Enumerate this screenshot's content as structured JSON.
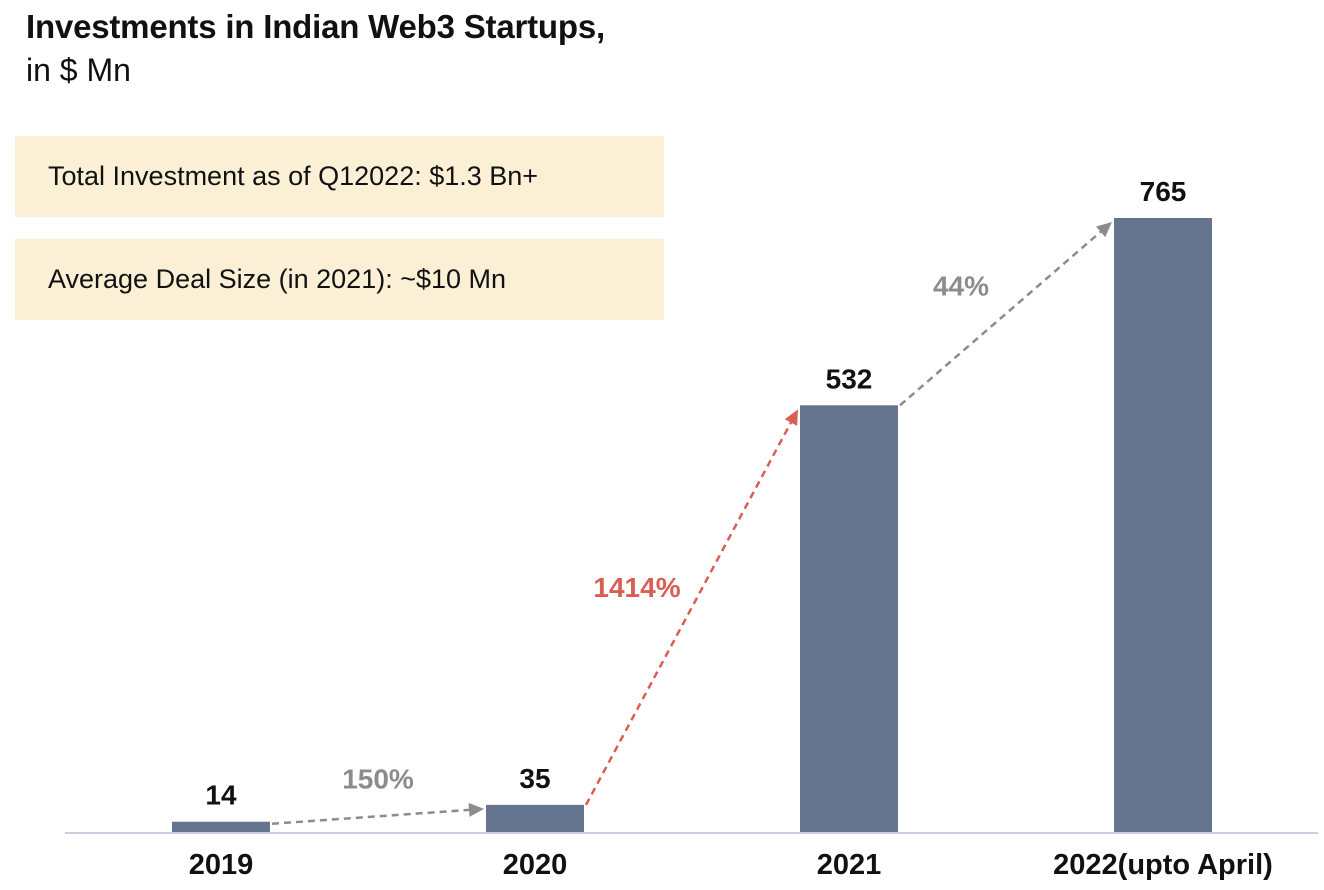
{
  "chart_data": {
    "type": "bar",
    "title": "Investments in Indian Web3 Startups,",
    "subtitle": "in $ Mn",
    "categories": [
      "2019",
      "2020",
      "2021",
      "2022(upto April)"
    ],
    "values": [
      14,
      35,
      532,
      765
    ],
    "value_labels": [
      "14",
      "35",
      "532",
      "765"
    ],
    "ylim": [
      0,
      765
    ],
    "xlabel": "",
    "ylabel": "",
    "grid": false,
    "bar_color": "#65758f",
    "baseline_color": "#c9d1e0",
    "growth_annotations": [
      {
        "from": "2019",
        "to": "2020",
        "label": "150%",
        "color": "#8c8c8c"
      },
      {
        "from": "2020",
        "to": "2021",
        "label": "1414%",
        "color": "#d95f55"
      },
      {
        "from": "2021",
        "to": "2022(upto April)",
        "label": "44%",
        "color": "#8c8c8c"
      }
    ]
  },
  "callouts": [
    {
      "text": "Total Investment as of Q12022: $1.3 Bn+"
    },
    {
      "text": "Average Deal Size (in 2021): ~$10 Mn"
    }
  ]
}
